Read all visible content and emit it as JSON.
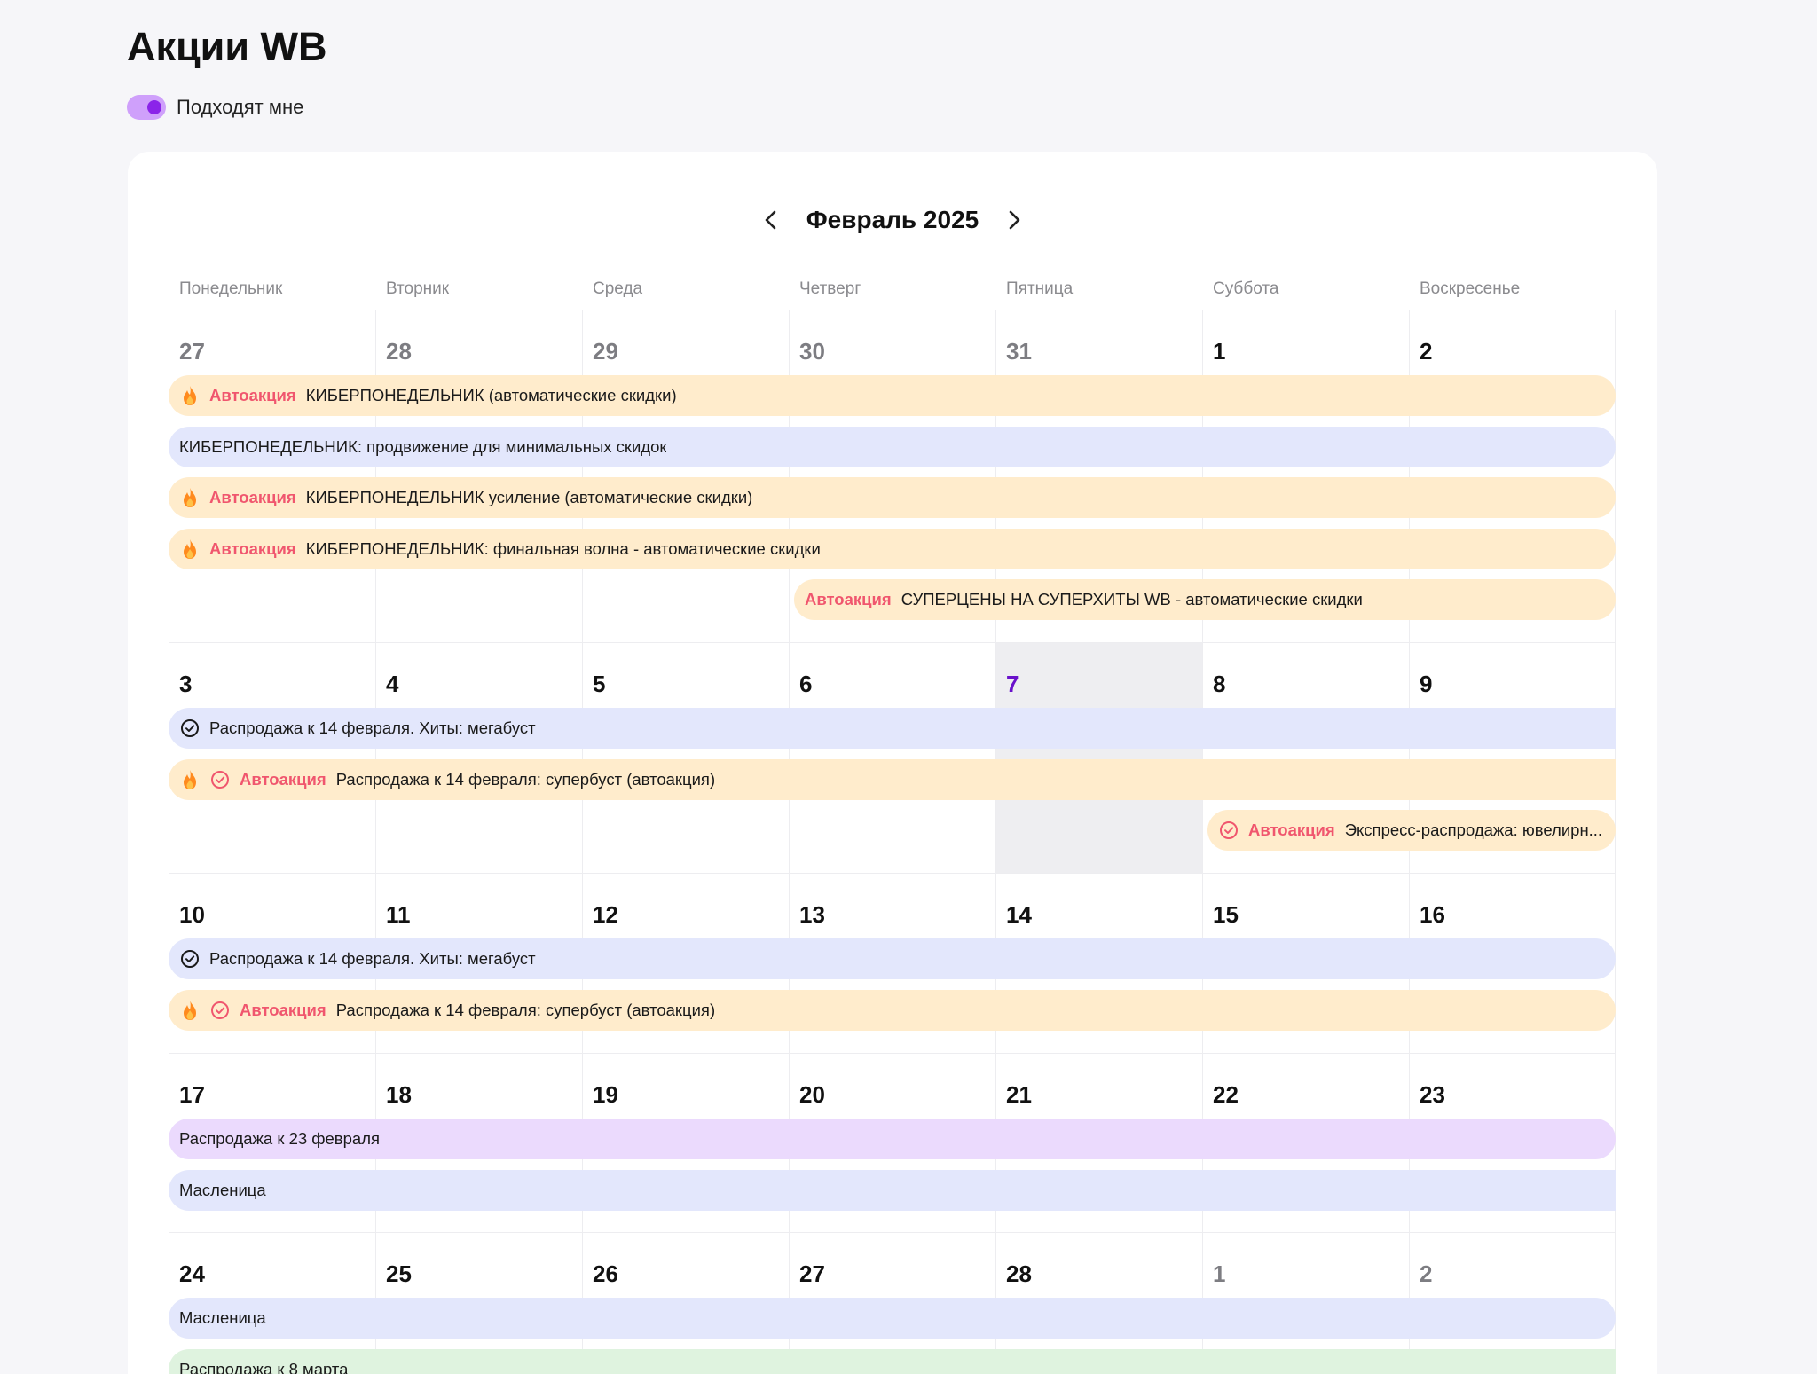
{
  "page": {
    "title": "Акции WB"
  },
  "filter": {
    "toggle_label": "Подходят мне",
    "toggle_on": true
  },
  "calendar": {
    "month_title": "Февраль 2025",
    "weekdays": [
      "Понедельник",
      "Вторник",
      "Среда",
      "Четверг",
      "Пятница",
      "Суббота",
      "Воскресенье"
    ],
    "today": "7",
    "weeks": [
      {
        "days": [
          {
            "num": "27",
            "muted": true
          },
          {
            "num": "28",
            "muted": true
          },
          {
            "num": "29",
            "muted": true
          },
          {
            "num": "30",
            "muted": true
          },
          {
            "num": "31",
            "muted": true
          },
          {
            "num": "1"
          },
          {
            "num": "2"
          }
        ],
        "events": [
          {
            "color": "orange",
            "fire": true,
            "check": "",
            "auto": "Автоакция",
            "text": "КИБЕРПОНЕДЕЛЬНИК (автоматические скидки)",
            "start": 0,
            "end": 6
          },
          {
            "color": "blue",
            "fire": false,
            "check": "",
            "auto": "",
            "text": "КИБЕРПОНЕДЕЛЬНИК: продвижение для минимальных скидок",
            "start": 0,
            "end": 6
          },
          {
            "color": "orange",
            "fire": true,
            "check": "",
            "auto": "Автоакция",
            "text": "КИБЕРПОНЕДЕЛЬНИК усиление (автоматические скидки)",
            "start": 0,
            "end": 6
          },
          {
            "color": "orange",
            "fire": true,
            "check": "",
            "auto": "Автоакция",
            "text": "КИБЕРПОНЕДЕЛЬНИК: финальная волна - автоматические скидки",
            "start": 0,
            "end": 6
          },
          {
            "color": "orange",
            "fire": false,
            "check": "",
            "auto": "Автоакция",
            "text": "СУПЕРЦЕНЫ НА СУПЕРХИТЫ WB - автоматические скидки",
            "start": 3,
            "end": 6
          }
        ]
      },
      {
        "days": [
          {
            "num": "3"
          },
          {
            "num": "4"
          },
          {
            "num": "5"
          },
          {
            "num": "6"
          },
          {
            "num": "7",
            "today": true
          },
          {
            "num": "8"
          },
          {
            "num": "9"
          }
        ],
        "events": [
          {
            "color": "blue",
            "fire": false,
            "check": "dark",
            "auto": "",
            "text": "Распродажа к 14 февраля. Хиты: мегабуст",
            "start": 0,
            "end": 6,
            "flat": true
          },
          {
            "color": "orange",
            "fire": true,
            "check": "red",
            "auto": "Автоакция",
            "text": "Распродажа к 14 февраля: супербуст (автоакция)",
            "start": 0,
            "end": 6,
            "flat": true
          },
          {
            "color": "orange",
            "fire": false,
            "check": "red",
            "auto": "Автоакция",
            "text": "Экспресс-распродажа: ювелирн...",
            "start": 5,
            "end": 6
          }
        ]
      },
      {
        "days": [
          {
            "num": "10"
          },
          {
            "num": "11"
          },
          {
            "num": "12"
          },
          {
            "num": "13"
          },
          {
            "num": "14"
          },
          {
            "num": "15"
          },
          {
            "num": "16"
          }
        ],
        "events": [
          {
            "color": "blue",
            "fire": false,
            "check": "dark",
            "auto": "",
            "text": "Распродажа к 14 февраля. Хиты: мегабуст",
            "start": 0,
            "end": 6
          },
          {
            "color": "orange",
            "fire": true,
            "check": "red",
            "auto": "Автоакция",
            "text": "Распродажа к 14 февраля: супербуст (автоакция)",
            "start": 0,
            "end": 6
          }
        ]
      },
      {
        "days": [
          {
            "num": "17"
          },
          {
            "num": "18"
          },
          {
            "num": "19"
          },
          {
            "num": "20"
          },
          {
            "num": "21"
          },
          {
            "num": "22"
          },
          {
            "num": "23"
          }
        ],
        "events": [
          {
            "color": "purple",
            "fire": false,
            "check": "",
            "auto": "",
            "text": "Распродажа к 23 февраля",
            "start": 0,
            "end": 6
          },
          {
            "color": "blue",
            "fire": false,
            "check": "",
            "auto": "",
            "text": "Масленица",
            "start": 0,
            "end": 6,
            "flat": true
          }
        ]
      },
      {
        "days": [
          {
            "num": "24"
          },
          {
            "num": "25"
          },
          {
            "num": "26"
          },
          {
            "num": "27"
          },
          {
            "num": "28"
          },
          {
            "num": "1",
            "muted": true
          },
          {
            "num": "2",
            "muted": true
          }
        ],
        "events": [
          {
            "color": "blue",
            "fire": false,
            "check": "",
            "auto": "",
            "text": "Масленица",
            "start": 0,
            "end": 6
          },
          {
            "color": "green",
            "fire": false,
            "check": "",
            "auto": "",
            "text": "Распродажа к 8 марта",
            "start": 0,
            "end": 6,
            "flat": true
          }
        ]
      }
    ]
  },
  "colors": {
    "accent": "#8b24e9",
    "today_text": "#6a11cb",
    "auto_tag": "#f0566e",
    "orange_bg": "#ffeccc",
    "blue_bg": "#e3e7fc",
    "purple_bg": "#ebdafd",
    "green_bg": "#dff3df"
  }
}
